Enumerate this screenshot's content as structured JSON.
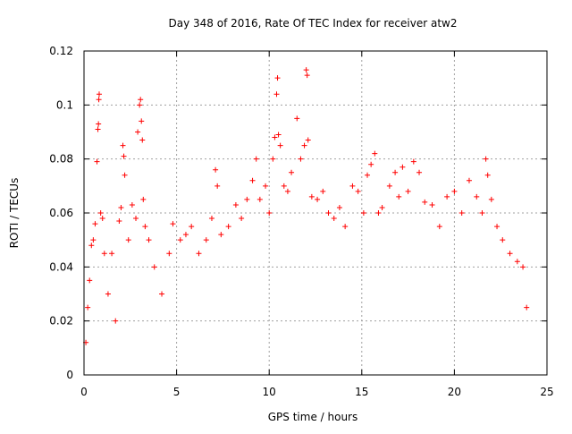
{
  "chart_data": {
    "type": "scatter",
    "title": "Day 348 of 2016, Rate Of TEC Index for receiver atw2",
    "xlabel": "GPS time / hours",
    "ylabel": "ROTI / TECUs",
    "xlim": [
      0,
      25
    ],
    "ylim": [
      0,
      0.12
    ],
    "x_ticks": [
      0,
      5,
      10,
      15,
      20,
      25
    ],
    "x_tick_labels": [
      "0",
      "5",
      "10",
      "15",
      "20",
      "25"
    ],
    "y_ticks": [
      0,
      0.02,
      0.04,
      0.06,
      0.08,
      0.1,
      0.12
    ],
    "y_tick_labels": [
      "0",
      "0.02",
      "0.04",
      "0.06",
      "0.08",
      "0.1",
      "0.12"
    ],
    "grid": true,
    "legend": false,
    "marker": "+",
    "color": "#ff0000",
    "series": [
      {
        "points": [
          [
            0.1,
            0.012
          ],
          [
            0.2,
            0.025
          ],
          [
            0.3,
            0.035
          ],
          [
            0.4,
            0.048
          ],
          [
            0.5,
            0.05
          ],
          [
            0.6,
            0.056
          ],
          [
            0.7,
            0.079
          ],
          [
            0.75,
            0.091
          ],
          [
            0.78,
            0.093
          ],
          [
            0.8,
            0.102
          ],
          [
            0.82,
            0.104
          ],
          [
            0.9,
            0.06
          ],
          [
            1.0,
            0.058
          ],
          [
            1.1,
            0.045
          ],
          [
            1.3,
            0.03
          ],
          [
            1.5,
            0.045
          ],
          [
            1.7,
            0.02
          ],
          [
            1.9,
            0.057
          ],
          [
            2.0,
            0.062
          ],
          [
            2.1,
            0.085
          ],
          [
            2.15,
            0.081
          ],
          [
            2.2,
            0.074
          ],
          [
            2.4,
            0.05
          ],
          [
            2.6,
            0.063
          ],
          [
            2.8,
            0.058
          ],
          [
            2.9,
            0.09
          ],
          [
            3.0,
            0.1
          ],
          [
            3.05,
            0.102
          ],
          [
            3.1,
            0.094
          ],
          [
            3.15,
            0.087
          ],
          [
            3.2,
            0.065
          ],
          [
            3.3,
            0.055
          ],
          [
            3.5,
            0.05
          ],
          [
            3.8,
            0.04
          ],
          [
            4.2,
            0.03
          ],
          [
            4.6,
            0.045
          ],
          [
            4.8,
            0.056
          ],
          [
            5.2,
            0.05
          ],
          [
            5.5,
            0.052
          ],
          [
            5.8,
            0.055
          ],
          [
            6.2,
            0.045
          ],
          [
            6.6,
            0.05
          ],
          [
            6.9,
            0.058
          ],
          [
            7.1,
            0.076
          ],
          [
            7.2,
            0.07
          ],
          [
            7.4,
            0.052
          ],
          [
            7.8,
            0.055
          ],
          [
            8.2,
            0.063
          ],
          [
            8.5,
            0.058
          ],
          [
            8.8,
            0.065
          ],
          [
            9.1,
            0.072
          ],
          [
            9.3,
            0.08
          ],
          [
            9.5,
            0.065
          ],
          [
            9.8,
            0.07
          ],
          [
            10.0,
            0.06
          ],
          [
            10.2,
            0.08
          ],
          [
            10.3,
            0.088
          ],
          [
            10.4,
            0.104
          ],
          [
            10.45,
            0.11
          ],
          [
            10.5,
            0.089
          ],
          [
            10.6,
            0.085
          ],
          [
            10.8,
            0.07
          ],
          [
            11.0,
            0.068
          ],
          [
            11.2,
            0.075
          ],
          [
            11.5,
            0.095
          ],
          [
            11.7,
            0.08
          ],
          [
            11.9,
            0.085
          ],
          [
            12.0,
            0.113
          ],
          [
            12.05,
            0.111
          ],
          [
            12.1,
            0.087
          ],
          [
            12.3,
            0.066
          ],
          [
            12.6,
            0.065
          ],
          [
            12.9,
            0.068
          ],
          [
            13.2,
            0.06
          ],
          [
            13.5,
            0.058
          ],
          [
            13.8,
            0.062
          ],
          [
            14.1,
            0.055
          ],
          [
            14.5,
            0.07
          ],
          [
            14.8,
            0.068
          ],
          [
            15.1,
            0.06
          ],
          [
            15.3,
            0.074
          ],
          [
            15.5,
            0.078
          ],
          [
            15.7,
            0.082
          ],
          [
            15.9,
            0.06
          ],
          [
            16.1,
            0.062
          ],
          [
            16.5,
            0.07
          ],
          [
            16.8,
            0.075
          ],
          [
            17.0,
            0.066
          ],
          [
            17.2,
            0.077
          ],
          [
            17.5,
            0.068
          ],
          [
            17.8,
            0.079
          ],
          [
            18.1,
            0.075
          ],
          [
            18.4,
            0.064
          ],
          [
            18.8,
            0.063
          ],
          [
            19.2,
            0.055
          ],
          [
            19.6,
            0.066
          ],
          [
            20.0,
            0.068
          ],
          [
            20.4,
            0.06
          ],
          [
            20.8,
            0.072
          ],
          [
            21.2,
            0.066
          ],
          [
            21.5,
            0.06
          ],
          [
            21.7,
            0.08
          ],
          [
            21.8,
            0.074
          ],
          [
            22.0,
            0.065
          ],
          [
            22.3,
            0.055
          ],
          [
            22.6,
            0.05
          ],
          [
            23.0,
            0.045
          ],
          [
            23.4,
            0.042
          ],
          [
            23.7,
            0.04
          ],
          [
            23.9,
            0.025
          ]
        ]
      }
    ]
  }
}
